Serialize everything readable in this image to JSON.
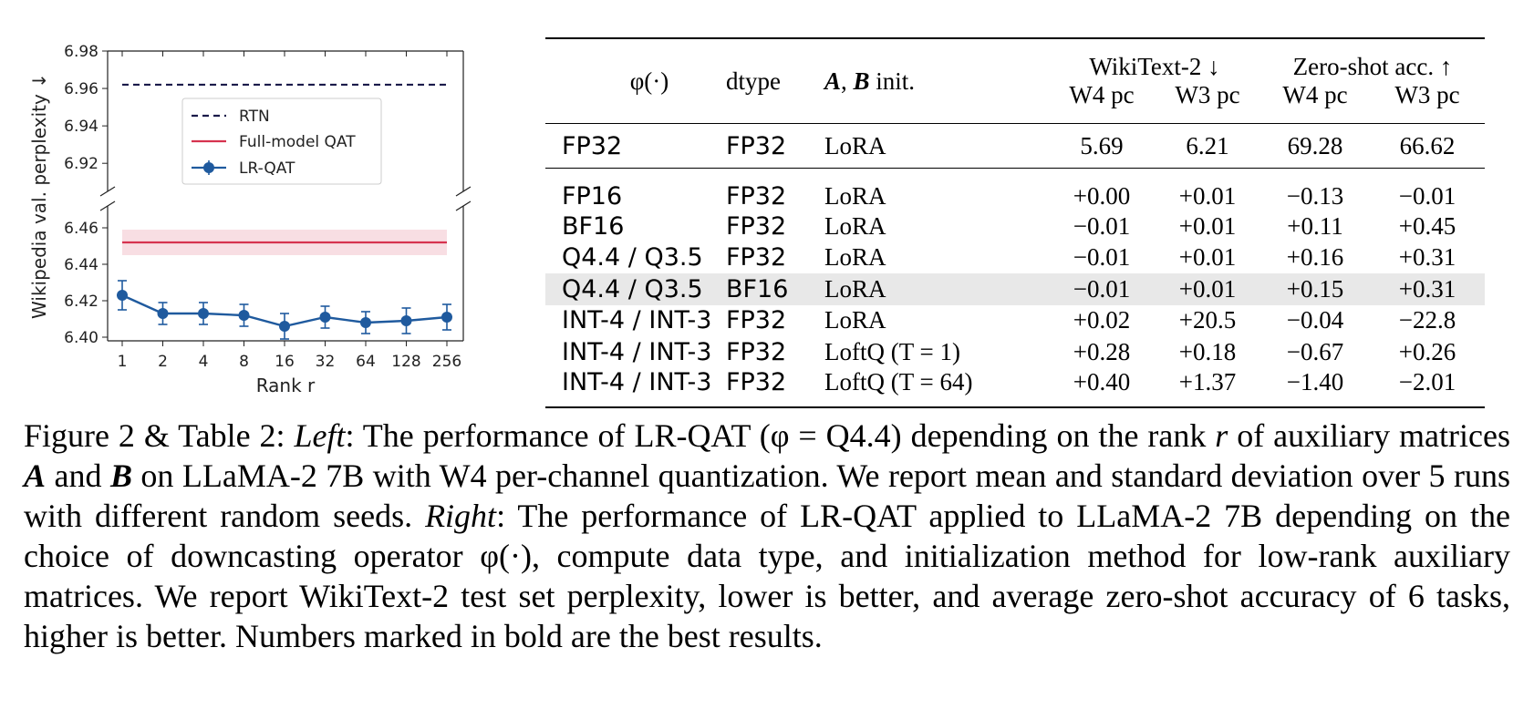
{
  "chart_data": {
    "type": "line",
    "xlabel": "Rank r",
    "ylabel": "Wikipedia val. perplexity ↓",
    "x_ticks": [
      "1",
      "2",
      "4",
      "8",
      "16",
      "32",
      "64",
      "128",
      "256"
    ],
    "y_ticks_upper": [
      "6.92",
      "6.94",
      "6.96",
      "6.98"
    ],
    "y_ticks_lower": [
      "6.40",
      "6.42",
      "6.44",
      "6.46"
    ],
    "ylim_upper": [
      6.905,
      6.98
    ],
    "ylim_lower": [
      6.398,
      6.472
    ],
    "axis_break": true,
    "legend_placement": "upper-center",
    "legend": [
      "RTN",
      "Full-model QAT",
      "LR-QAT"
    ],
    "series": [
      {
        "name": "RTN",
        "style": "dashed",
        "color": "#1a1a4a",
        "value": 6.962
      },
      {
        "name": "Full-model QAT",
        "style": "solid",
        "color": "#d6334f",
        "value": 6.452,
        "band": [
          6.445,
          6.459
        ]
      },
      {
        "name": "LR-QAT",
        "style": "errorbar",
        "color": "#1f5a9e",
        "values": [
          6.423,
          6.413,
          6.413,
          6.412,
          6.406,
          6.411,
          6.408,
          6.409,
          6.411
        ],
        "errors": [
          0.008,
          0.006,
          0.006,
          0.006,
          0.007,
          0.006,
          0.006,
          0.007,
          0.007
        ]
      }
    ]
  },
  "table": {
    "header": {
      "phi": "φ(·)",
      "dtype": "dtype",
      "ab_ab": "A",
      "ab_sep": ", ",
      "ab_b": "B",
      "ab_rest": " init.",
      "wikitext": "WikiText-2 ↓",
      "zeroshot": "Zero-shot acc. ↑",
      "w4pc": "W4 pc",
      "w3pc": "W3 pc"
    },
    "baseline": {
      "phi": "FP32",
      "dtype": "FP32",
      "init": "LoRA",
      "vals": [
        "5.69",
        "6.21",
        "69.28",
        "66.62"
      ]
    },
    "rows": [
      {
        "phi": "FP16",
        "dtype": "FP32",
        "init": "LoRA",
        "vals": [
          {
            "t": "+0.00",
            "b": false
          },
          {
            "t": "+0.01",
            "b": true
          },
          {
            "t": "−0.13",
            "b": false
          },
          {
            "t": "−0.01",
            "b": false
          }
        ]
      },
      {
        "phi": "BF16",
        "dtype": "FP32",
        "init": "LoRA",
        "vals": [
          {
            "t": "−0.01",
            "b": true
          },
          {
            "t": "+0.01",
            "b": true
          },
          {
            "t": "+0.11",
            "b": false
          },
          {
            "t": "+0.45",
            "b": true
          }
        ]
      },
      {
        "phi": "Q4.4 / Q3.5",
        "dtype": "FP32",
        "init": "LoRA",
        "vals": [
          {
            "t": "−0.01",
            "b": true
          },
          {
            "t": "+0.01",
            "b": true
          },
          {
            "t": "+0.16",
            "b": true
          },
          {
            "t": "+0.31",
            "b": false
          }
        ]
      },
      {
        "phi": "Q4.4 / Q3.5",
        "dtype": "BF16",
        "init": "LoRA",
        "highlight": true,
        "vals": [
          {
            "t": "−0.01",
            "b": true
          },
          {
            "t": "+0.01",
            "b": true
          },
          {
            "t": "+0.15",
            "b": false
          },
          {
            "t": "+0.31",
            "b": false
          }
        ]
      },
      {
        "phi": "INT-4 / INT-3",
        "dtype": "FP32",
        "init": "LoRA",
        "vals": [
          {
            "t": "+0.02",
            "b": false
          },
          {
            "t": "+20.5",
            "b": false
          },
          {
            "t": "−0.04",
            "b": false
          },
          {
            "t": "−22.8",
            "b": false
          }
        ]
      },
      {
        "phi": "INT-4 / INT-3",
        "dtype": "FP32",
        "init": "LoftQ (T = 1)",
        "vals": [
          {
            "t": "+0.28",
            "b": false
          },
          {
            "t": "+0.18",
            "b": false
          },
          {
            "t": "−0.67",
            "b": false
          },
          {
            "t": "+0.26",
            "b": false
          }
        ]
      },
      {
        "phi": "INT-4 / INT-3",
        "dtype": "FP32",
        "init": "LoftQ (T = 64)",
        "vals": [
          {
            "t": "+0.40",
            "b": false
          },
          {
            "t": "+1.37",
            "b": false
          },
          {
            "t": "−1.40",
            "b": false
          },
          {
            "t": "−2.01",
            "b": false
          }
        ]
      }
    ]
  },
  "caption": {
    "label": "Figure 2 & Table 2: ",
    "left_label": "Left",
    "part1": ": The performance of LR-QAT (φ = Q4.4) depending on the rank ",
    "r": "r",
    "part2": " of auxiliary matrices ",
    "A": "A",
    "and": " and ",
    "B": "B",
    "part3": " on LLaMA-2 7B with W4 per-channel quantization. We report mean and standard deviation over 5 runs with different random seeds. ",
    "right_label": "Right",
    "part4": ": The performance of LR-QAT applied to LLaMA-2 7B depending on the choice of downcasting operator φ(·), compute data type, and initialization method for low-rank auxiliary matrices. We report WikiText-2 test set perplexity, lower is better, and average zero-shot accuracy of 6 tasks, higher is better. Numbers marked in bold are the best results."
  }
}
